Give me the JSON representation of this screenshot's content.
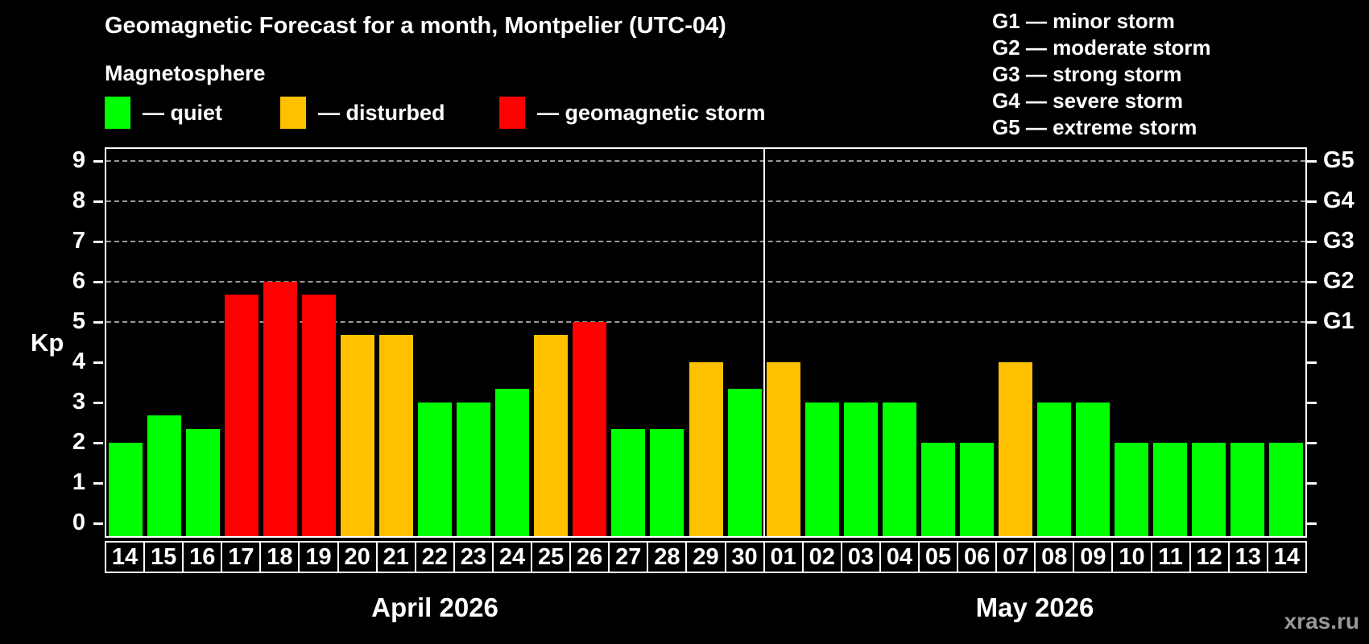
{
  "title": "Geomagnetic Forecast for a month, Montpelier (UTC-04)",
  "subtitle": "Magnetosphere",
  "legend": {
    "quiet_label": "— quiet",
    "disturbed_label": "— disturbed",
    "storm_label": "— geomagnetic storm"
  },
  "g_legend": [
    "G1 — minor storm",
    "G2 — moderate storm",
    "G3 — strong storm",
    "G4 — severe storm",
    "G5 — extreme storm"
  ],
  "colors": {
    "quiet": "#00ff00",
    "disturbed": "#ffc000",
    "storm": "#ff0000",
    "background": "#000000",
    "text": "#ffffff",
    "grid": "#999999",
    "watermark": "#999999"
  },
  "axis": {
    "y_label": "Kp",
    "y_ticks": [
      0,
      1,
      2,
      3,
      4,
      5,
      6,
      7,
      8,
      9
    ],
    "right_labels": {
      "5": "G1",
      "6": "G2",
      "7": "G3",
      "8": "G4",
      "9": "G5"
    }
  },
  "watermark": "xras.ru",
  "chart_data": {
    "type": "bar",
    "title": "Geomagnetic Forecast for a month, Montpelier (UTC-04)",
    "xlabel": "",
    "ylabel": "Kp",
    "ylim": [
      0,
      9
    ],
    "grid": "dashed horizontal at Kp 5-9 only",
    "legend_position": "top",
    "gridlines_at": [
      5,
      6,
      7,
      8,
      9
    ],
    "months": [
      {
        "label": "April 2026",
        "days": [
          {
            "day": "14",
            "kp": 2.0,
            "status": "quiet"
          },
          {
            "day": "15",
            "kp": 2.67,
            "status": "quiet"
          },
          {
            "day": "16",
            "kp": 2.33,
            "status": "quiet"
          },
          {
            "day": "17",
            "kp": 5.67,
            "status": "storm"
          },
          {
            "day": "18",
            "kp": 6.0,
            "status": "storm"
          },
          {
            "day": "19",
            "kp": 5.67,
            "status": "storm"
          },
          {
            "day": "20",
            "kp": 4.67,
            "status": "disturbed"
          },
          {
            "day": "21",
            "kp": 4.67,
            "status": "disturbed"
          },
          {
            "day": "22",
            "kp": 3.0,
            "status": "quiet"
          },
          {
            "day": "23",
            "kp": 3.0,
            "status": "quiet"
          },
          {
            "day": "24",
            "kp": 3.33,
            "status": "quiet"
          },
          {
            "day": "25",
            "kp": 4.67,
            "status": "disturbed"
          },
          {
            "day": "26",
            "kp": 5.0,
            "status": "storm"
          },
          {
            "day": "27",
            "kp": 2.33,
            "status": "quiet"
          },
          {
            "day": "28",
            "kp": 2.33,
            "status": "quiet"
          },
          {
            "day": "29",
            "kp": 4.0,
            "status": "disturbed"
          },
          {
            "day": "30",
            "kp": 3.33,
            "status": "quiet"
          }
        ]
      },
      {
        "label": "May 2026",
        "days": [
          {
            "day": "01",
            "kp": 4.0,
            "status": "disturbed"
          },
          {
            "day": "02",
            "kp": 3.0,
            "status": "quiet"
          },
          {
            "day": "03",
            "kp": 3.0,
            "status": "quiet"
          },
          {
            "day": "04",
            "kp": 3.0,
            "status": "quiet"
          },
          {
            "day": "05",
            "kp": 2.0,
            "status": "quiet"
          },
          {
            "day": "06",
            "kp": 2.0,
            "status": "quiet"
          },
          {
            "day": "07",
            "kp": 4.0,
            "status": "disturbed"
          },
          {
            "day": "08",
            "kp": 3.0,
            "status": "quiet"
          },
          {
            "day": "09",
            "kp": 3.0,
            "status": "quiet"
          },
          {
            "day": "10",
            "kp": 2.0,
            "status": "quiet"
          },
          {
            "day": "11",
            "kp": 2.0,
            "status": "quiet"
          },
          {
            "day": "12",
            "kp": 2.0,
            "status": "quiet"
          },
          {
            "day": "13",
            "kp": 2.0,
            "status": "quiet"
          },
          {
            "day": "14",
            "kp": 2.0,
            "status": "quiet"
          }
        ]
      }
    ]
  }
}
